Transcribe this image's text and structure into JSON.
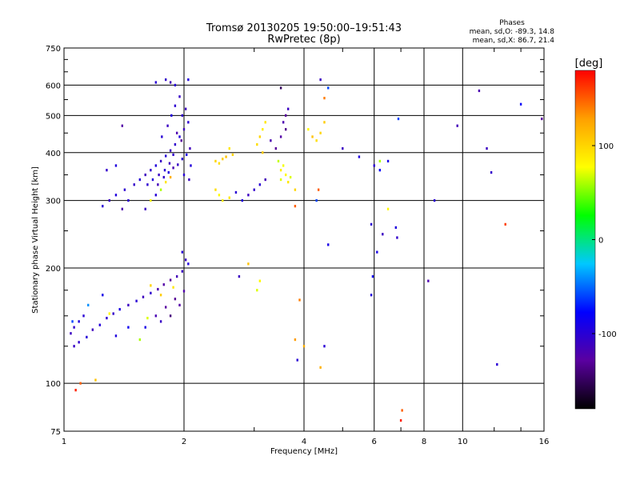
{
  "chart_data": {
    "type": "scatter",
    "title": "Tromsø 20130205 19:50:00–19:51:43",
    "subtitle": "RwPretec (8p)",
    "xlabel": "Frequency [MHz]",
    "ylabel": "Stationary phase Virtual Height [km]",
    "x_scale": "log",
    "y_scale": "log",
    "xlim": [
      1,
      16
    ],
    "ylim": [
      75,
      750
    ],
    "x_ticks": [
      1,
      2,
      4,
      6,
      8,
      10,
      16
    ],
    "x_tick_labels": [
      "1",
      "2",
      "4",
      "6",
      "8",
      "10",
      "16"
    ],
    "y_ticks": [
      75,
      100,
      200,
      300,
      400,
      500,
      600,
      750
    ],
    "y_tick_labels": [
      "75",
      "100",
      "200",
      "300",
      "400",
      "500",
      "600",
      "750"
    ],
    "grid": true,
    "stats": {
      "header": "Phases",
      "line_o": "mean, sd,O: -89.3, 14.8",
      "line_x": "mean, sd,X:  86.7, 21.4"
    },
    "colorbar": {
      "label": "[deg]",
      "range": [
        -180,
        180
      ],
      "ticks": [
        100,
        0,
        -100
      ],
      "tick_labels": [
        "100",
        "0",
        "-100"
      ],
      "stops": [
        "#000000",
        "#5a00a0",
        "#0000ff",
        "#00c8ff",
        "#00ff00",
        "#ffff00",
        "#ffa000",
        "#ff0000"
      ]
    },
    "series": [
      {
        "points": [
          [
            1.04,
            135,
            -110
          ],
          [
            1.06,
            140,
            -105
          ],
          [
            1.09,
            145,
            -95
          ],
          [
            1.12,
            150,
            -100
          ],
          [
            1.06,
            125,
            -108
          ],
          [
            1.09,
            128,
            -104
          ],
          [
            1.14,
            132,
            -98
          ],
          [
            1.18,
            138,
            -112
          ],
          [
            1.23,
            142,
            -96
          ],
          [
            1.28,
            148,
            -102
          ],
          [
            1.33,
            152,
            -106
          ],
          [
            1.38,
            156,
            -92
          ],
          [
            1.45,
            160,
            -110
          ],
          [
            1.52,
            164,
            -100
          ],
          [
            1.58,
            168,
            -112
          ],
          [
            1.65,
            172,
            -104
          ],
          [
            1.72,
            176,
            -120
          ],
          [
            1.78,
            181,
            -125
          ],
          [
            1.85,
            186,
            -130
          ],
          [
            1.92,
            190,
            -115
          ],
          [
            1.98,
            196,
            -110
          ],
          [
            1.7,
            150,
            -118
          ],
          [
            1.8,
            158,
            -128
          ],
          [
            1.9,
            166,
            -132
          ],
          [
            2.0,
            174,
            -122
          ],
          [
            1.75,
            145,
            -108
          ],
          [
            1.85,
            150,
            -140
          ],
          [
            1.95,
            160,
            -125
          ],
          [
            2.02,
            210,
            -110
          ],
          [
            1.98,
            220,
            -100
          ],
          [
            2.05,
            205,
            -95
          ],
          [
            1.6,
            140,
            -90
          ],
          [
            1.55,
            130,
            60
          ],
          [
            1.3,
            152,
            80
          ],
          [
            1.65,
            180,
            100
          ],
          [
            1.2,
            102,
            110
          ],
          [
            1.07,
            96,
            170
          ],
          [
            1.1,
            100,
            150
          ],
          [
            1.05,
            145,
            -60
          ],
          [
            1.15,
            160,
            -40
          ],
          [
            1.25,
            170,
            -90
          ],
          [
            1.45,
            140,
            -85
          ],
          [
            1.35,
            133,
            -95
          ],
          [
            1.62,
            148,
            70
          ],
          [
            1.75,
            170,
            105
          ],
          [
            1.88,
            178,
            90
          ]
        ]
      },
      {
        "points": [
          [
            1.25,
            290,
            -100
          ],
          [
            1.3,
            300,
            -110
          ],
          [
            1.35,
            310,
            -95
          ],
          [
            1.42,
            320,
            -102
          ],
          [
            1.5,
            330,
            -106
          ],
          [
            1.55,
            340,
            -98
          ],
          [
            1.6,
            350,
            -112
          ],
          [
            1.65,
            360,
            -104
          ],
          [
            1.7,
            370,
            -96
          ],
          [
            1.75,
            380,
            -108
          ],
          [
            1.8,
            392,
            -100
          ],
          [
            1.85,
            405,
            -110
          ],
          [
            1.9,
            420,
            -104
          ],
          [
            1.95,
            440,
            -96
          ],
          [
            2.0,
            460,
            -112
          ],
          [
            2.05,
            480,
            -102
          ],
          [
            1.72,
            330,
            -115
          ],
          [
            1.78,
            345,
            -105
          ],
          [
            1.83,
            355,
            -95
          ],
          [
            1.88,
            365,
            -118
          ],
          [
            1.93,
            372,
            -108
          ],
          [
            1.98,
            385,
            -100
          ],
          [
            2.03,
            395,
            -92
          ],
          [
            2.07,
            410,
            -114
          ],
          [
            1.76,
            440,
            -100
          ],
          [
            1.82,
            470,
            -110
          ],
          [
            1.86,
            500,
            -95
          ],
          [
            1.9,
            530,
            -102
          ],
          [
            1.95,
            560,
            -108
          ],
          [
            1.8,
            620,
            -106
          ],
          [
            1.85,
            610,
            -115
          ],
          [
            1.9,
            600,
            -100
          ],
          [
            2.05,
            620,
            -95
          ],
          [
            2.02,
            520,
            -112
          ],
          [
            1.98,
            500,
            -104
          ],
          [
            1.7,
            310,
            -98
          ],
          [
            1.75,
            320,
            60
          ],
          [
            1.8,
            335,
            90
          ],
          [
            1.85,
            345,
            120
          ],
          [
            1.65,
            300,
            80
          ],
          [
            1.6,
            285,
            -110
          ],
          [
            1.45,
            300,
            -100
          ],
          [
            1.4,
            285,
            -120
          ],
          [
            1.35,
            370,
            -95
          ],
          [
            1.28,
            360,
            -105
          ],
          [
            1.4,
            470,
            -125
          ],
          [
            1.7,
            610,
            -100
          ],
          [
            1.92,
            450,
            -120
          ],
          [
            1.97,
            430,
            -130
          ],
          [
            2.0,
            350,
            -100
          ],
          [
            2.06,
            340,
            -110
          ],
          [
            2.08,
            370,
            -96
          ],
          [
            1.88,
            395,
            -104
          ],
          [
            1.84,
            375,
            -112
          ],
          [
            1.79,
            360,
            -100
          ],
          [
            1.73,
            350,
            -108
          ],
          [
            1.67,
            340,
            -96
          ],
          [
            1.62,
            330,
            -102
          ]
        ]
      },
      {
        "points": [
          [
            2.4,
            380,
            100
          ],
          [
            2.45,
            375,
            95
          ],
          [
            2.5,
            385,
            105
          ],
          [
            2.55,
            390,
            110
          ],
          [
            2.6,
            410,
            90
          ],
          [
            2.65,
            395,
            100
          ],
          [
            2.4,
            320,
            95
          ],
          [
            2.45,
            310,
            80
          ],
          [
            2.5,
            300,
            85
          ],
          [
            2.6,
            305,
            90
          ],
          [
            2.7,
            315,
            -100
          ],
          [
            2.8,
            300,
            -95
          ],
          [
            2.9,
            310,
            -110
          ],
          [
            3.0,
            320,
            -105
          ],
          [
            3.1,
            330,
            -100
          ],
          [
            3.2,
            340,
            -115
          ],
          [
            3.05,
            420,
            95
          ],
          [
            3.1,
            440,
            100
          ],
          [
            3.15,
            460,
            85
          ],
          [
            3.2,
            480,
            90
          ],
          [
            3.15,
            400,
            105
          ],
          [
            3.3,
            430,
            -120
          ],
          [
            3.4,
            410,
            -130
          ],
          [
            3.5,
            440,
            -125
          ],
          [
            3.6,
            460,
            -135
          ],
          [
            3.55,
            480,
            -120
          ],
          [
            3.6,
            500,
            -130
          ],
          [
            3.65,
            520,
            -110
          ],
          [
            3.5,
            340,
            70
          ],
          [
            3.6,
            350,
            80
          ],
          [
            3.55,
            370,
            75
          ],
          [
            3.45,
            380,
            65
          ],
          [
            3.5,
            360,
            85
          ],
          [
            3.65,
            335,
            90
          ],
          [
            3.7,
            345,
            70
          ],
          [
            3.8,
            320,
            100
          ],
          [
            4.2,
            440,
            110
          ],
          [
            4.3,
            430,
            95
          ],
          [
            4.4,
            450,
            100
          ],
          [
            4.5,
            480,
            105
          ],
          [
            4.1,
            460,
            80
          ],
          [
            3.5,
            590,
            -150
          ],
          [
            4.4,
            620,
            -110
          ],
          [
            4.6,
            590,
            -60
          ],
          [
            4.5,
            555,
            140
          ],
          [
            2.9,
            205,
            110
          ],
          [
            3.1,
            185,
            80
          ],
          [
            3.05,
            175,
            70
          ],
          [
            2.75,
            190,
            -110
          ],
          [
            3.8,
            290,
            150
          ],
          [
            3.9,
            165,
            140
          ],
          [
            3.8,
            130,
            130
          ],
          [
            4.0,
            125,
            120
          ],
          [
            3.85,
            115,
            -100
          ]
        ]
      },
      {
        "points": [
          [
            5.0,
            410,
            -110
          ],
          [
            5.5,
            390,
            -95
          ],
          [
            6.0,
            370,
            -100
          ],
          [
            6.2,
            360,
            -80
          ],
          [
            6.5,
            380,
            -90
          ],
          [
            6.9,
            490,
            -60
          ],
          [
            5.9,
            260,
            -100
          ],
          [
            6.1,
            220,
            -90
          ],
          [
            6.3,
            245,
            -110
          ],
          [
            6.8,
            255,
            -95
          ],
          [
            6.85,
            240,
            -105
          ],
          [
            6.5,
            285,
            80
          ],
          [
            7.05,
            85,
            150
          ],
          [
            7.0,
            80,
            170
          ],
          [
            5.9,
            170,
            -95
          ],
          [
            5.95,
            190,
            -85
          ],
          [
            4.6,
            230,
            -90
          ],
          [
            4.5,
            125,
            -100
          ],
          [
            4.4,
            110,
            120
          ],
          [
            4.3,
            300,
            -60
          ],
          [
            4.35,
            320,
            150
          ],
          [
            6.2,
            380,
            60
          ],
          [
            8.2,
            185,
            -120
          ],
          [
            8.5,
            300,
            -100
          ],
          [
            9.7,
            470,
            -115
          ],
          [
            11.0,
            580,
            -120
          ],
          [
            11.5,
            410,
            -110
          ],
          [
            11.8,
            355,
            -105
          ],
          [
            12.2,
            112,
            -100
          ],
          [
            12.8,
            260,
            160
          ],
          [
            14.0,
            535,
            -80
          ],
          [
            15.8,
            490,
            -130
          ]
        ]
      }
    ]
  }
}
